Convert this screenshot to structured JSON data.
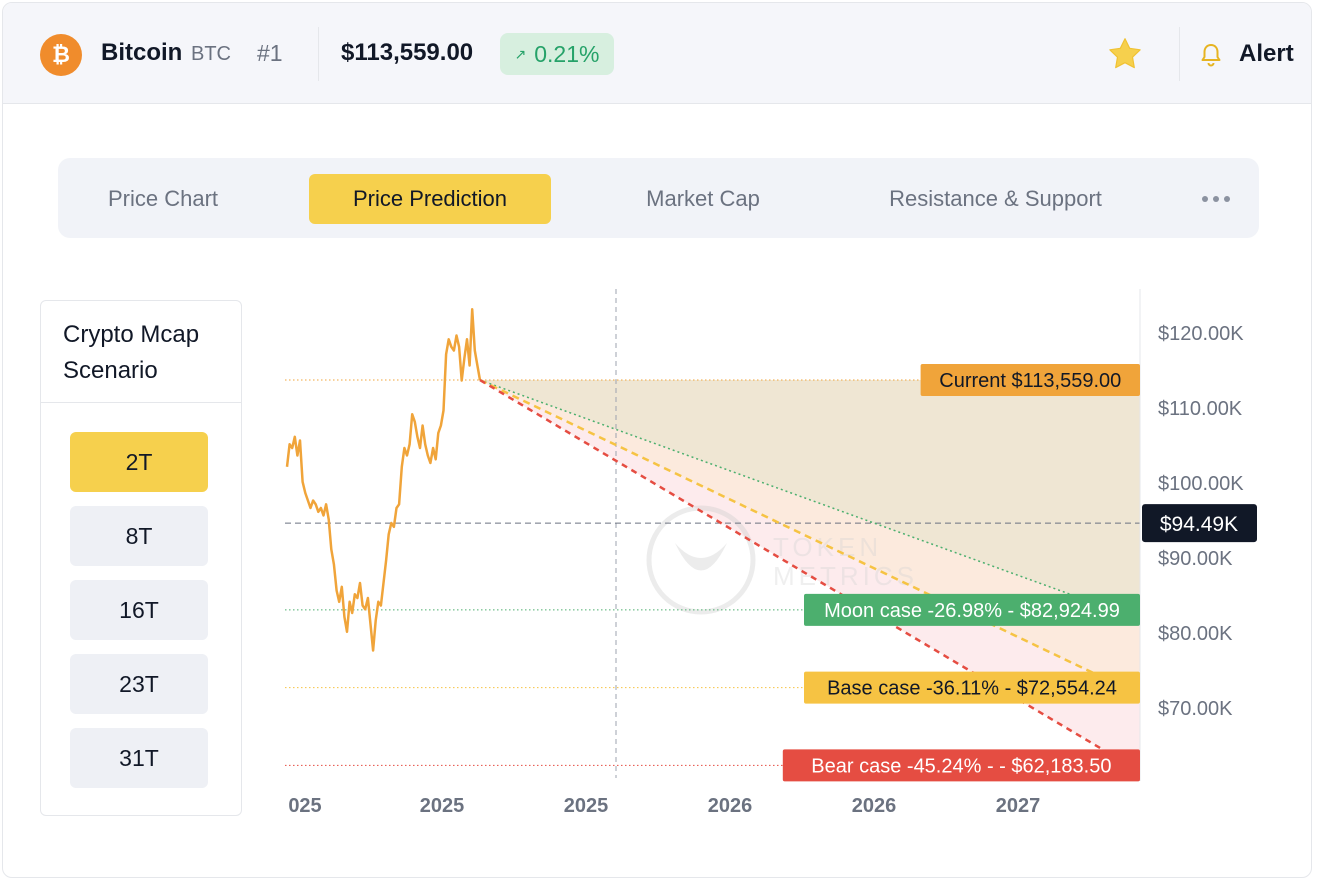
{
  "header": {
    "coin_name": "Bitcoin",
    "symbol": "BTC",
    "rank": "#1",
    "price": "$113,559.00",
    "change_arrow": "↗",
    "change": "0.21%",
    "alert_label": "Alert",
    "logo_glyph": "₿",
    "colors": {
      "logo": "#f08c2c",
      "positive": "#26a269",
      "star": "#f6d04d"
    }
  },
  "tabs": [
    {
      "label": "Price Chart",
      "active": false
    },
    {
      "label": "Price Prediction",
      "active": true
    },
    {
      "label": "Market Cap",
      "active": false
    },
    {
      "label": "Resistance & Support",
      "active": false
    }
  ],
  "scenario": {
    "title": "Crypto Mcap Scenario",
    "options": [
      {
        "label": "2T",
        "active": true
      },
      {
        "label": "8T",
        "active": false
      },
      {
        "label": "16T",
        "active": false
      },
      {
        "label": "23T",
        "active": false
      },
      {
        "label": "31T",
        "active": false
      }
    ]
  },
  "chart_data": {
    "type": "line",
    "title": "",
    "xlabel": "",
    "ylabel": "",
    "x_tick_labels": [
      "025",
      "2025",
      "2025",
      "2026",
      "2026",
      "2027"
    ],
    "y_ticks": [
      {
        "value": 120000,
        "label": "$120.00K"
      },
      {
        "value": 110000,
        "label": "$110.00K"
      },
      {
        "value": 100000,
        "label": "$100.00K"
      },
      {
        "value": 90000,
        "label": "$90.00K"
      },
      {
        "value": 80000,
        "label": "$80.00K"
      },
      {
        "value": 70000,
        "label": "$70.00K"
      }
    ],
    "ylim": [
      60500,
      126500
    ],
    "crosshair": {
      "value": 94490,
      "label": "$94.49K"
    },
    "current": {
      "value": 113559,
      "label": "Current $113,559.00"
    },
    "scenarios": [
      {
        "name": "Moon case",
        "label": "Moon case -26.98% - $82,924.99",
        "value": 82924.99,
        "change_pct": -26.98,
        "color": "#4caf6e"
      },
      {
        "name": "Base case",
        "label": "Base case -36.11% - $72,554.24",
        "value": 72554.24,
        "change_pct": -36.11,
        "color": "#f6c343"
      },
      {
        "name": "Bear case",
        "label": "Bear case -45.24% - - $62,183.50",
        "value": 62183.5,
        "change_pct": -45.24,
        "color": "#e54d42"
      }
    ],
    "price_history": [
      [
        0,
        102000
      ],
      [
        1,
        105000
      ],
      [
        2,
        104500
      ],
      [
        3,
        106000
      ],
      [
        4,
        103500
      ],
      [
        5,
        105500
      ],
      [
        6,
        100000
      ],
      [
        7,
        98500
      ],
      [
        8,
        97500
      ],
      [
        9,
        96500
      ],
      [
        10,
        97500
      ],
      [
        11,
        97000
      ],
      [
        12,
        96000
      ],
      [
        13,
        96500
      ],
      [
        14,
        95500
      ],
      [
        15,
        97000
      ],
      [
        16,
        95000
      ],
      [
        17,
        91000
      ],
      [
        18,
        89000
      ],
      [
        19,
        85500
      ],
      [
        20,
        84000
      ],
      [
        21,
        86000
      ],
      [
        22,
        82000
      ],
      [
        23,
        80000
      ],
      [
        24,
        84000
      ],
      [
        25,
        82500
      ],
      [
        26,
        85000
      ],
      [
        27,
        84500
      ],
      [
        28,
        86500
      ],
      [
        29,
        83500
      ],
      [
        30,
        83000
      ],
      [
        31,
        84500
      ],
      [
        32,
        81000
      ],
      [
        33,
        77500
      ],
      [
        34,
        81500
      ],
      [
        35,
        84000
      ],
      [
        36,
        83500
      ],
      [
        37,
        86500
      ],
      [
        38,
        89500
      ],
      [
        39,
        93000
      ],
      [
        40,
        94500
      ],
      [
        41,
        94000
      ],
      [
        42,
        96500
      ],
      [
        43,
        97000
      ],
      [
        44,
        102000
      ],
      [
        45,
        104500
      ],
      [
        46,
        103500
      ],
      [
        47,
        105000
      ],
      [
        48,
        109000
      ],
      [
        49,
        108000
      ],
      [
        50,
        106000
      ],
      [
        51,
        104500
      ],
      [
        52,
        107500
      ],
      [
        53,
        105000
      ],
      [
        54,
        103500
      ],
      [
        55,
        102500
      ],
      [
        56,
        104500
      ],
      [
        57,
        103000
      ],
      [
        58,
        106500
      ],
      [
        59,
        107500
      ],
      [
        60,
        109500
      ],
      [
        61,
        117000
      ],
      [
        62,
        119000
      ],
      [
        63,
        118000
      ],
      [
        64,
        117500
      ],
      [
        65,
        119500
      ],
      [
        66,
        118000
      ],
      [
        67,
        113500
      ],
      [
        68,
        116500
      ],
      [
        69,
        119000
      ],
      [
        70,
        115500
      ],
      [
        71,
        123000
      ],
      [
        72,
        117500
      ],
      [
        73,
        115500
      ],
      [
        74,
        113559
      ]
    ],
    "grid": false,
    "watermark": "TOKEN METRICS"
  }
}
